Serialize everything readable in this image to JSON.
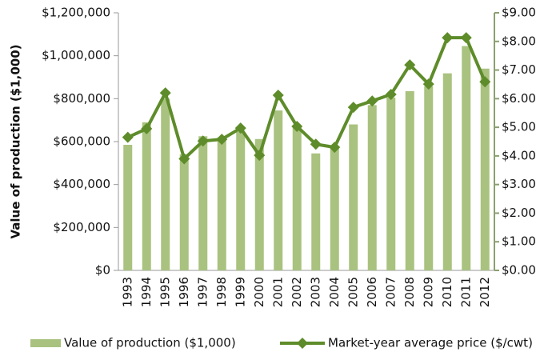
{
  "chart_data": {
    "type": "bar-line",
    "y_label": "Value of production ($1,000)",
    "categories": [
      "1993",
      "1994",
      "1995",
      "1996",
      "1997",
      "1998",
      "1999",
      "2000",
      "2001",
      "2002",
      "2003",
      "2004",
      "2005",
      "2006",
      "2007",
      "2008",
      "2009",
      "2010",
      "2011",
      "2012"
    ],
    "series": [
      {
        "name": "Value of production ($1,000)",
        "type": "bar",
        "color": "#a9c27f",
        "values": [
          585000,
          690000,
          800000,
          540000,
          625000,
          620000,
          645000,
          612000,
          745000,
          665000,
          545000,
          580000,
          680000,
          770000,
          805000,
          835000,
          858000,
          918000,
          1045000,
          940000
        ]
      },
      {
        "name": "Market-year average price ($/cwt)",
        "type": "line",
        "axis": "y2",
        "color": "#5e8c2a",
        "values": [
          4.65,
          4.95,
          6.2,
          3.9,
          4.52,
          4.58,
          4.97,
          4.02,
          6.12,
          5.03,
          4.41,
          4.3,
          5.7,
          5.92,
          6.15,
          7.18,
          6.51,
          8.13,
          8.13,
          6.59
        ]
      }
    ],
    "ylim": [
      0,
      1200000
    ],
    "yticks": [
      {
        "value": 0,
        "label": "$0"
      },
      {
        "value": 200000,
        "label": "$200,000"
      },
      {
        "value": 400000,
        "label": "$400,000"
      },
      {
        "value": 600000,
        "label": "$600,000"
      },
      {
        "value": 800000,
        "label": "$800,000"
      },
      {
        "value": 1000000,
        "label": "$1,000,000"
      },
      {
        "value": 1200000,
        "label": "$1,200,000"
      }
    ],
    "y2lim": [
      0,
      9
    ],
    "y2ticks": [
      {
        "value": 0,
        "label": "$0.00"
      },
      {
        "value": 1,
        "label": "$1.00"
      },
      {
        "value": 2,
        "label": "$2.00"
      },
      {
        "value": 3,
        "label": "$3.00"
      },
      {
        "value": 4,
        "label": "$4.00"
      },
      {
        "value": 5,
        "label": "$5.00"
      },
      {
        "value": 6,
        "label": "$6.00"
      },
      {
        "value": 7,
        "label": "$7.00"
      },
      {
        "value": 8,
        "label": "$8.00"
      },
      {
        "value": 9,
        "label": "$9.00"
      }
    ]
  }
}
